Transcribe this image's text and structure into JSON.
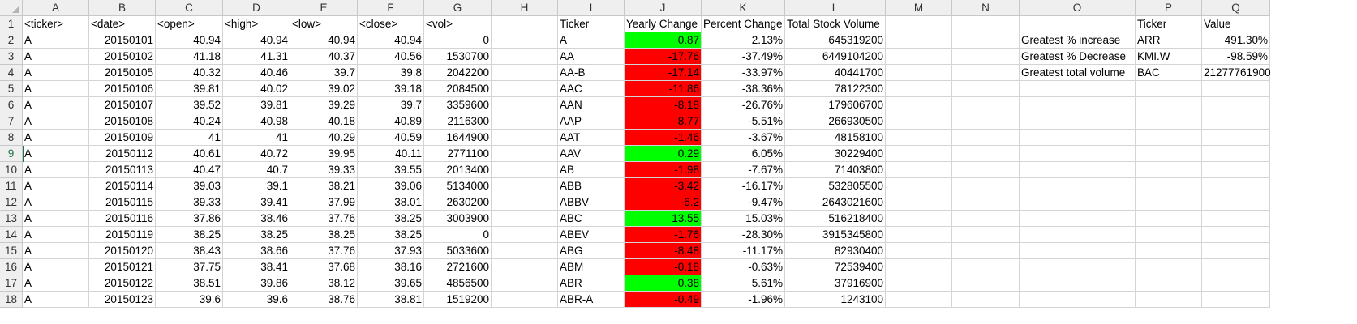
{
  "columns": [
    "A",
    "B",
    "C",
    "D",
    "E",
    "F",
    "G",
    "H",
    "I",
    "J",
    "K",
    "L",
    "M",
    "N",
    "O",
    "P",
    "Q"
  ],
  "row_numbers": [
    "1",
    "2",
    "3",
    "4",
    "5",
    "6",
    "7",
    "8",
    "9",
    "10",
    "11",
    "12",
    "13",
    "14",
    "15",
    "16",
    "17",
    "18"
  ],
  "active_cell": "A9",
  "colors": {
    "positive_change": "#00ff00",
    "negative_change": "#ff0000",
    "header_bg": "#efefef",
    "accent": "#217346"
  },
  "raw_headers": [
    "<ticker>",
    "<date>",
    "<open>",
    "<high>",
    "<low>",
    "<close>",
    "<vol>"
  ],
  "raw_data": [
    [
      "A",
      "20150101",
      "40.94",
      "40.94",
      "40.94",
      "40.94",
      "0"
    ],
    [
      "A",
      "20150102",
      "41.18",
      "41.31",
      "40.37",
      "40.56",
      "1530700"
    ],
    [
      "A",
      "20150105",
      "40.32",
      "40.46",
      "39.7",
      "39.8",
      "2042200"
    ],
    [
      "A",
      "20150106",
      "39.81",
      "40.02",
      "39.02",
      "39.18",
      "2084500"
    ],
    [
      "A",
      "20150107",
      "39.52",
      "39.81",
      "39.29",
      "39.7",
      "3359600"
    ],
    [
      "A",
      "20150108",
      "40.24",
      "40.98",
      "40.18",
      "40.89",
      "2116300"
    ],
    [
      "A",
      "20150109",
      "41",
      "41",
      "40.29",
      "40.59",
      "1644900"
    ],
    [
      "A",
      "20150112",
      "40.61",
      "40.72",
      "39.95",
      "40.11",
      "2771100"
    ],
    [
      "A",
      "20150113",
      "40.47",
      "40.7",
      "39.33",
      "39.55",
      "2013400"
    ],
    [
      "A",
      "20150114",
      "39.03",
      "39.1",
      "38.21",
      "39.06",
      "5134000"
    ],
    [
      "A",
      "20150115",
      "39.33",
      "39.41",
      "37.99",
      "38.01",
      "2630200"
    ],
    [
      "A",
      "20150116",
      "37.86",
      "38.46",
      "37.76",
      "38.25",
      "3003900"
    ],
    [
      "A",
      "20150119",
      "38.25",
      "38.25",
      "38.25",
      "38.25",
      "0"
    ],
    [
      "A",
      "20150120",
      "38.43",
      "38.66",
      "37.76",
      "37.93",
      "5033600"
    ],
    [
      "A",
      "20150121",
      "37.75",
      "38.41",
      "37.68",
      "38.16",
      "2721600"
    ],
    [
      "A",
      "20150122",
      "38.51",
      "39.86",
      "38.12",
      "39.65",
      "4856500"
    ],
    [
      "A",
      "20150123",
      "39.6",
      "39.6",
      "38.76",
      "38.81",
      "1519200"
    ]
  ],
  "summary_headers": [
    "Ticker",
    "Yearly Change",
    "Percent Change",
    "Total Stock Volume"
  ],
  "summary_data": [
    {
      "ticker": "A",
      "yearly_change": "0.87",
      "percent_change": "2.13%",
      "total_volume": "645319200",
      "status": "positive"
    },
    {
      "ticker": "AA",
      "yearly_change": "-17.76",
      "percent_change": "-37.49%",
      "total_volume": "6449104200",
      "status": "negative"
    },
    {
      "ticker": "AA-B",
      "yearly_change": "-17.14",
      "percent_change": "-33.97%",
      "total_volume": "40441700",
      "status": "negative"
    },
    {
      "ticker": "AAC",
      "yearly_change": "-11.86",
      "percent_change": "-38.36%",
      "total_volume": "78122300",
      "status": "negative"
    },
    {
      "ticker": "AAN",
      "yearly_change": "-8.18",
      "percent_change": "-26.76%",
      "total_volume": "179606700",
      "status": "negative"
    },
    {
      "ticker": "AAP",
      "yearly_change": "-8.77",
      "percent_change": "-5.51%",
      "total_volume": "266930500",
      "status": "negative"
    },
    {
      "ticker": "AAT",
      "yearly_change": "-1.46",
      "percent_change": "-3.67%",
      "total_volume": "48158100",
      "status": "negative"
    },
    {
      "ticker": "AAV",
      "yearly_change": "0.29",
      "percent_change": "6.05%",
      "total_volume": "30229400",
      "status": "positive"
    },
    {
      "ticker": "AB",
      "yearly_change": "-1.98",
      "percent_change": "-7.67%",
      "total_volume": "71403800",
      "status": "negative"
    },
    {
      "ticker": "ABB",
      "yearly_change": "-3.42",
      "percent_change": "-16.17%",
      "total_volume": "532805500",
      "status": "negative"
    },
    {
      "ticker": "ABBV",
      "yearly_change": "-6.2",
      "percent_change": "-9.47%",
      "total_volume": "2643021600",
      "status": "negative"
    },
    {
      "ticker": "ABC",
      "yearly_change": "13.55",
      "percent_change": "15.03%",
      "total_volume": "516218400",
      "status": "positive"
    },
    {
      "ticker": "ABEV",
      "yearly_change": "-1.76",
      "percent_change": "-28.30%",
      "total_volume": "3915345800",
      "status": "negative"
    },
    {
      "ticker": "ABG",
      "yearly_change": "-8.48",
      "percent_change": "-11.17%",
      "total_volume": "82930400",
      "status": "negative"
    },
    {
      "ticker": "ABM",
      "yearly_change": "-0.18",
      "percent_change": "-0.63%",
      "total_volume": "72539400",
      "status": "negative"
    },
    {
      "ticker": "ABR",
      "yearly_change": "0.38",
      "percent_change": "5.61%",
      "total_volume": "37916900",
      "status": "positive"
    },
    {
      "ticker": "ABR-A",
      "yearly_change": "-0.49",
      "percent_change": "-1.96%",
      "total_volume": "1243100",
      "status": "negative"
    }
  ],
  "greatest_headers": [
    "Ticker",
    "Value"
  ],
  "greatest": [
    {
      "label": "Greatest % increase",
      "ticker": "ARR",
      "value": "491.30%"
    },
    {
      "label": "Greatest % Decrease",
      "ticker": "KMI.W",
      "value": "-98.59%"
    },
    {
      "label": "Greatest total volume",
      "ticker": "BAC",
      "value": "21277761900"
    }
  ]
}
